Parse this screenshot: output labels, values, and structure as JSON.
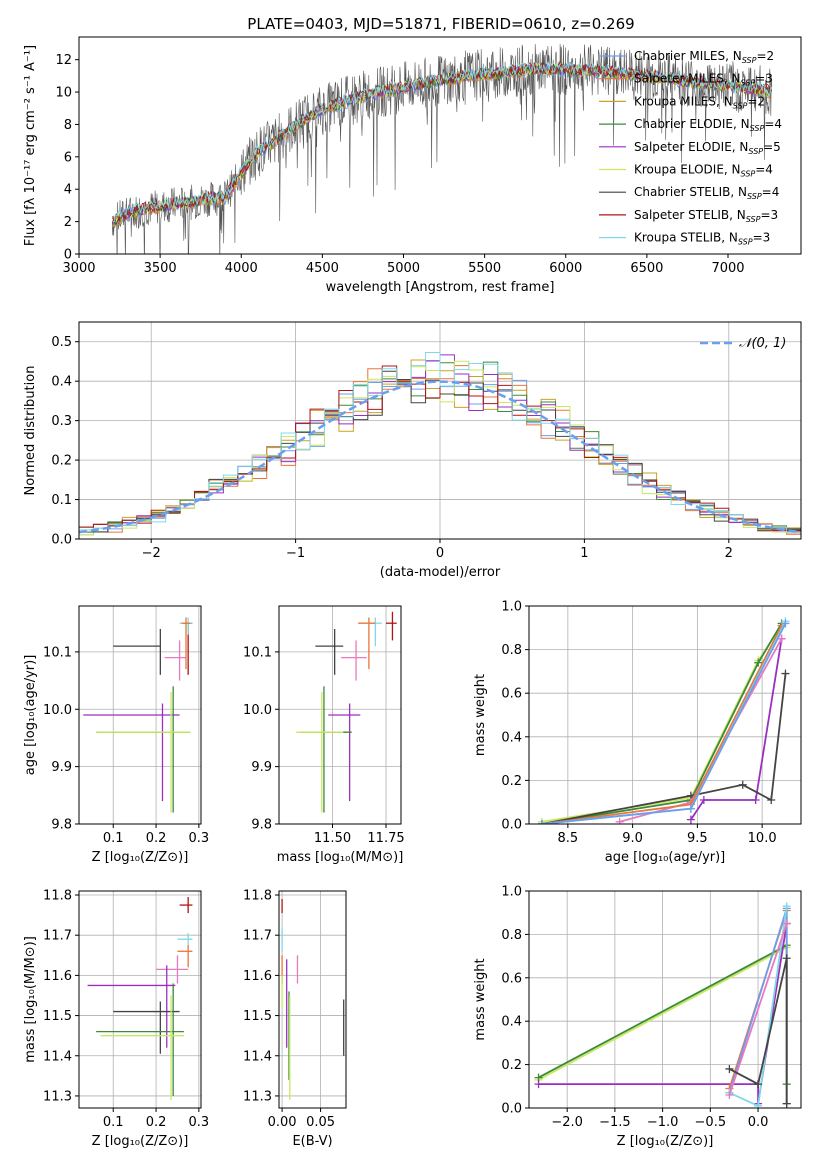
{
  "figure": {
    "title": "PLATE=0403, MJD=51871, FIBERID=0610, z=0.269"
  },
  "colors": {
    "Chabrier MILES": "#6a9ff0",
    "Salpeter MILES": "#e8763a",
    "Kroupa MILES": "#c9a227",
    "Chabrier ELODIE": "#3c8a3c",
    "Salpeter ELODIE": "#9a2fc0",
    "Kroupa ELODIE": "#c8e860",
    "Chabrier STELIB": "#444444",
    "Salpeter STELIB": "#b01515",
    "Kroupa STELIB": "#80d8e8",
    "extra": "#e879c0"
  },
  "chart_data": [
    {
      "id": "spectrum",
      "type": "line",
      "title": "PLATE=0403, MJD=51871, FIBERID=0610, z=0.269",
      "xlabel": "wavelength [Angstrom, rest frame]",
      "ylabel": "Flux [fλ 10⁻¹⁷ erg cm⁻² s⁻¹ A⁻¹]",
      "xlim": [
        3000,
        7450
      ],
      "ylim": [
        0,
        13.4
      ],
      "xticks": [
        3000,
        3500,
        4000,
        4500,
        5000,
        5500,
        6000,
        6500,
        7000
      ],
      "yticks": [
        0,
        2,
        4,
        6,
        8,
        10,
        12
      ],
      "legend": [
        "Chabrier MILES, N_SSP=2",
        "Salpeter MILES, N_SSP=3",
        "Kroupa MILES, N_SSP=2",
        "Chabrier ELODIE, N_SSP=4",
        "Salpeter ELODIE, N_SSP=5",
        "Kroupa ELODIE, N_SSP=4",
        "Chabrier STELIB, N_SSP=4",
        "Salpeter STELIB, N_SSP=3",
        "Kroupa STELIB, N_SSP=3"
      ],
      "legend_names": [
        "Chabrier MILES",
        "Salpeter MILES",
        "Kroupa MILES",
        "Chabrier ELODIE",
        "Salpeter ELODIE",
        "Kroupa ELODIE",
        "Chabrier STELIB",
        "Salpeter STELIB",
        "Kroupa STELIB"
      ],
      "legend_nssp": [
        2,
        3,
        2,
        4,
        5,
        4,
        4,
        3,
        3
      ],
      "legend_placement": "right",
      "grid": false,
      "data_range": [
        3205,
        7270
      ],
      "continuum": {
        "x": [
          3205,
          3300,
          3400,
          3500,
          3600,
          3700,
          3800,
          3900,
          4000,
          4100,
          4200,
          4300,
          4400,
          4500,
          4600,
          4800,
          5000,
          5200,
          5400,
          5600,
          5800,
          6000,
          6200,
          6400,
          6600,
          6800,
          7000,
          7270
        ],
        "y": [
          2.0,
          2.5,
          2.8,
          2.9,
          3.1,
          3.2,
          3.4,
          3.5,
          5.0,
          6.3,
          6.9,
          7.7,
          8.4,
          8.9,
          9.3,
          9.9,
          10.3,
          10.7,
          11.0,
          11.2,
          11.4,
          11.4,
          11.3,
          11.1,
          10.9,
          10.6,
          10.4,
          10.0
        ]
      }
    },
    {
      "id": "residuals",
      "type": "bar",
      "xlabel": "(data-model)/error",
      "ylabel": "Normed distribution",
      "xlim": [
        -2.5,
        2.5
      ],
      "ylim": [
        0,
        0.55
      ],
      "xticks": [
        -2,
        -1,
        0,
        1,
        2
      ],
      "yticks": [
        0.0,
        0.1,
        0.2,
        0.3,
        0.4,
        0.5
      ],
      "grid": true,
      "legend": [
        "𝒩(0, 1)"
      ],
      "legend_placement": "top-right",
      "bin_width": 0.1
    },
    {
      "id": "age-vs-Z",
      "type": "scatter",
      "xlabel": "Z [log₁₀(Z/Z⊙)]",
      "ylabel": "age  [log₁₀(age/yr)]",
      "xlim": [
        0.02,
        0.305
      ],
      "ylim": [
        9.8,
        10.18
      ],
      "xticks": [
        0.1,
        0.2,
        0.3
      ],
      "yticks": [
        9.8,
        9.9,
        10.0,
        10.1
      ],
      "grid": true,
      "points": [
        {
          "series": "Chabrier STELIB",
          "x": 0.21,
          "y": 10.11,
          "xerr": [
            0.1,
            0.21
          ],
          "yerr": [
            10.06,
            10.14
          ]
        },
        {
          "series": "Salpeter STELIB",
          "x": 0.275,
          "y": 10.15,
          "xerr": [
            0.265,
            0.285
          ],
          "yerr": [
            10.06,
            10.15
          ]
        },
        {
          "series": "Kroupa STELIB",
          "x": 0.275,
          "y": 10.15,
          "xerr": [
            0.255,
            0.285
          ],
          "yerr": [
            10.13,
            10.16
          ]
        },
        {
          "series": "extra",
          "x": 0.255,
          "y": 10.09,
          "xerr": [
            0.22,
            0.27
          ],
          "yerr": [
            10.05,
            10.12
          ]
        },
        {
          "series": "Salpeter MILES",
          "x": 0.27,
          "y": 10.15,
          "xerr": [
            0.26,
            0.28
          ],
          "yerr": [
            10.07,
            10.16
          ]
        },
        {
          "series": "Salpeter ELODIE",
          "x": 0.215,
          "y": 9.99,
          "xerr": [
            0.03,
            0.255
          ],
          "yerr": [
            9.84,
            10.01
          ]
        },
        {
          "series": "Chabrier ELODIE",
          "x": 0.24,
          "y": 9.96,
          "xerr": [
            0.06,
            0.28
          ],
          "yerr": [
            9.82,
            10.04
          ]
        },
        {
          "series": "Kroupa ELODIE",
          "x": 0.235,
          "y": 9.96,
          "xerr": [
            0.06,
            0.28
          ],
          "yerr": [
            9.82,
            10.03
          ]
        }
      ]
    },
    {
      "id": "age-vs-mass",
      "type": "scatter",
      "xlabel": "mass [log₁₀(M/M⊙)]",
      "ylabel": "",
      "xlim": [
        11.25,
        11.82
      ],
      "ylim": [
        9.8,
        10.18
      ],
      "xticks": [
        11.5,
        11.75
      ],
      "yticks": [
        9.8,
        9.9,
        10.0,
        10.1
      ],
      "grid": true,
      "points": [
        {
          "series": "Chabrier STELIB",
          "x": 11.51,
          "y": 10.11,
          "xerr": [
            11.42,
            11.55
          ],
          "yerr": [
            10.06,
            10.14
          ]
        },
        {
          "series": "Salpeter STELIB",
          "x": 11.78,
          "y": 10.15,
          "xerr": [
            11.75,
            11.8
          ],
          "yerr": [
            10.12,
            10.17
          ]
        },
        {
          "series": "Kroupa STELIB",
          "x": 11.7,
          "y": 10.15,
          "xerr": [
            11.68,
            11.73
          ],
          "yerr": [
            10.11,
            10.16
          ]
        },
        {
          "series": "extra",
          "x": 11.61,
          "y": 10.09,
          "xerr": [
            11.54,
            11.66
          ],
          "yerr": [
            10.05,
            10.12
          ]
        },
        {
          "series": "Salpeter MILES",
          "x": 11.67,
          "y": 10.15,
          "xerr": [
            11.62,
            11.7
          ],
          "yerr": [
            10.07,
            10.16
          ]
        },
        {
          "series": "Salpeter ELODIE",
          "x": 11.58,
          "y": 9.99,
          "xerr": [
            11.48,
            11.63
          ],
          "yerr": [
            9.84,
            10.01
          ]
        },
        {
          "series": "Chabrier ELODIE",
          "x": 11.46,
          "y": 9.96,
          "xerr": [
            11.35,
            11.59
          ],
          "yerr": [
            9.82,
            10.04
          ]
        },
        {
          "series": "Kroupa ELODIE",
          "x": 11.45,
          "y": 9.96,
          "xerr": [
            11.33,
            11.55
          ],
          "yerr": [
            9.82,
            10.03
          ]
        }
      ]
    },
    {
      "id": "mass-weight-vs-age",
      "type": "line",
      "xlabel": "age  [log₁₀(age/yr)]",
      "ylabel": "mass weight",
      "xlim": [
        8.2,
        10.3
      ],
      "ylim": [
        0,
        1.0
      ],
      "xticks": [
        8.5,
        9.0,
        9.5,
        10.0
      ],
      "yticks": [
        0.0,
        0.2,
        0.4,
        0.6,
        0.8,
        1.0
      ],
      "grid": true,
      "series": [
        {
          "name": "Kroupa ELODIE",
          "x": [
            8.3,
            9.45,
            9.97,
            10.15
          ],
          "y": [
            0.01,
            0.12,
            0.75,
            0.91
          ]
        },
        {
          "name": "Chabrier ELODIE",
          "x": [
            8.3,
            9.45,
            9.97,
            10.15
          ],
          "y": [
            0.0,
            0.11,
            0.74,
            0.92
          ]
        },
        {
          "name": "Salpeter ELODIE",
          "x": [
            9.45,
            9.55,
            9.95,
            10.15
          ],
          "y": [
            0.02,
            0.11,
            0.11,
            0.85
          ]
        },
        {
          "name": "Chabrier STELIB",
          "x": [
            8.3,
            9.45,
            9.85,
            10.07,
            10.18
          ],
          "y": [
            0.0,
            0.13,
            0.18,
            0.11,
            0.69
          ]
        },
        {
          "name": "extra",
          "x": [
            8.9,
            9.45,
            10.15
          ],
          "y": [
            0.01,
            0.1,
            0.85
          ]
        },
        {
          "name": "Salpeter MILES",
          "x": [
            8.3,
            9.45,
            10.15
          ],
          "y": [
            0.0,
            0.09,
            0.91
          ]
        },
        {
          "name": "Kroupa STELIB",
          "x": [
            8.3,
            9.45,
            10.18
          ],
          "y": [
            0.0,
            0.07,
            0.93
          ]
        },
        {
          "name": "Chabrier MILES",
          "x": [
            8.3,
            9.45,
            10.18
          ],
          "y": [
            0.0,
            0.07,
            0.92
          ]
        }
      ]
    },
    {
      "id": "mass-vs-Z",
      "type": "scatter",
      "xlabel": "Z [log₁₀(Z/Z⊙)]",
      "ylabel": "mass [log₁₀(M/M⊙)]",
      "xlim": [
        0.02,
        0.305
      ],
      "ylim": [
        11.27,
        11.81
      ],
      "xticks": [
        0.1,
        0.2,
        0.3
      ],
      "yticks": [
        11.3,
        11.4,
        11.5,
        11.6,
        11.7,
        11.8
      ],
      "grid": true,
      "points": [
        {
          "series": "Salpeter STELIB",
          "x": 0.275,
          "y": 11.775,
          "xerr": [
            0.255,
            0.285
          ],
          "yerr": [
            11.755,
            11.795
          ]
        },
        {
          "series": "Kroupa STELIB",
          "x": 0.275,
          "y": 11.69,
          "xerr": [
            0.25,
            0.285
          ],
          "yerr": [
            11.67,
            11.705
          ]
        },
        {
          "series": "Salpeter MILES",
          "x": 0.275,
          "y": 11.66,
          "xerr": [
            0.25,
            0.285
          ],
          "yerr": [
            11.62,
            11.675
          ]
        },
        {
          "series": "extra",
          "x": 0.25,
          "y": 11.615,
          "xerr": [
            0.2,
            0.275
          ],
          "yerr": [
            11.58,
            11.65
          ]
        },
        {
          "series": "Salpeter ELODIE",
          "x": 0.225,
          "y": 11.575,
          "xerr": [
            0.04,
            0.245
          ],
          "yerr": [
            11.42,
            11.625
          ]
        },
        {
          "series": "Chabrier STELIB",
          "x": 0.21,
          "y": 11.51,
          "xerr": [
            0.1,
            0.255
          ],
          "yerr": [
            11.405,
            11.535
          ]
        },
        {
          "series": "Chabrier ELODIE",
          "x": 0.24,
          "y": 11.46,
          "xerr": [
            0.06,
            0.265
          ],
          "yerr": [
            11.3,
            11.58
          ]
        },
        {
          "series": "Kroupa ELODIE",
          "x": 0.235,
          "y": 11.45,
          "xerr": [
            0.07,
            0.265
          ],
          "yerr": [
            11.29,
            11.55
          ]
        }
      ]
    },
    {
      "id": "mass-vs-EBV",
      "type": "scatter",
      "xlabel": "E(B-V)",
      "ylabel": "",
      "xlim": [
        -0.004,
        0.083
      ],
      "ylim": [
        11.27,
        11.81
      ],
      "xticks": [
        0.0,
        0.05
      ],
      "yticks": [
        11.3,
        11.4,
        11.5,
        11.6,
        11.7,
        11.8
      ],
      "grid": true,
      "points": [
        {
          "series": "Salpeter STELIB",
          "x": 0.0,
          "yerr": [
            11.755,
            11.79
          ]
        },
        {
          "series": "Kroupa STELIB",
          "x": 0.0,
          "yerr": [
            11.66,
            11.72
          ]
        },
        {
          "series": "Salpeter MILES",
          "x": 0.0,
          "yerr": [
            11.58,
            11.65
          ]
        },
        {
          "series": "Kroupa ELODIE",
          "x": 0.0,
          "yerr": [
            11.52,
            11.6
          ]
        },
        {
          "series": "Salpeter ELODIE",
          "x": 0.006,
          "yerr": [
            11.42,
            11.64
          ]
        },
        {
          "series": "Chabrier ELODIE",
          "x": 0.009,
          "yerr": [
            11.34,
            11.56
          ]
        },
        {
          "series": "Kroupa ELODIE",
          "x": 0.01,
          "yerr": [
            11.29,
            11.55
          ]
        },
        {
          "series": "extra",
          "x": 0.02,
          "yerr": [
            11.58,
            11.65
          ]
        },
        {
          "series": "Chabrier STELIB",
          "x": 0.08,
          "yerr": [
            11.4,
            11.54
          ]
        }
      ]
    },
    {
      "id": "mass-weight-vs-Z",
      "type": "line",
      "xlabel": "Z [log₁₀(Z/Z⊙)]",
      "ylabel": "mass weight",
      "xlim": [
        -2.4,
        0.45
      ],
      "ylim": [
        0,
        1.0
      ],
      "xticks": [
        -2.0,
        -1.5,
        -1.0,
        -0.5,
        0.0
      ],
      "yticks": [
        0.0,
        0.2,
        0.4,
        0.6,
        0.8,
        1.0
      ],
      "grid": true,
      "series": [
        {
          "name": "Kroupa ELODIE",
          "x": [
            -2.3,
            0.3,
            0.3
          ],
          "y": [
            0.13,
            0.74,
            0.11
          ]
        },
        {
          "name": "Chabrier ELODIE",
          "x": [
            -2.3,
            0.3,
            0.3
          ],
          "y": [
            0.14,
            0.75,
            0.11
          ]
        },
        {
          "name": "Salpeter ELODIE",
          "x": [
            -2.3,
            0.0,
            0.0,
            0.3
          ],
          "y": [
            0.11,
            0.11,
            0.02,
            0.85
          ]
        },
        {
          "name": "Salpeter MILES",
          "x": [
            -0.3,
            0.3,
            0.3
          ],
          "y": [
            0.09,
            0.91,
            0.02
          ]
        },
        {
          "name": "Chabrier MILES",
          "x": [
            -0.3,
            0.3,
            0.3
          ],
          "y": [
            0.07,
            0.92,
            0.02
          ]
        },
        {
          "name": "Kroupa STELIB",
          "x": [
            -0.3,
            0.0,
            0.3
          ],
          "y": [
            0.07,
            0.01,
            0.93
          ]
        },
        {
          "name": "extra",
          "x": [
            -0.3,
            0.3
          ],
          "y": [
            0.06,
            0.85
          ]
        },
        {
          "name": "Chabrier STELIB",
          "x": [
            -0.3,
            0.0,
            0.3,
            0.3
          ],
          "y": [
            0.18,
            0.11,
            0.69,
            0.02
          ]
        }
      ]
    }
  ]
}
